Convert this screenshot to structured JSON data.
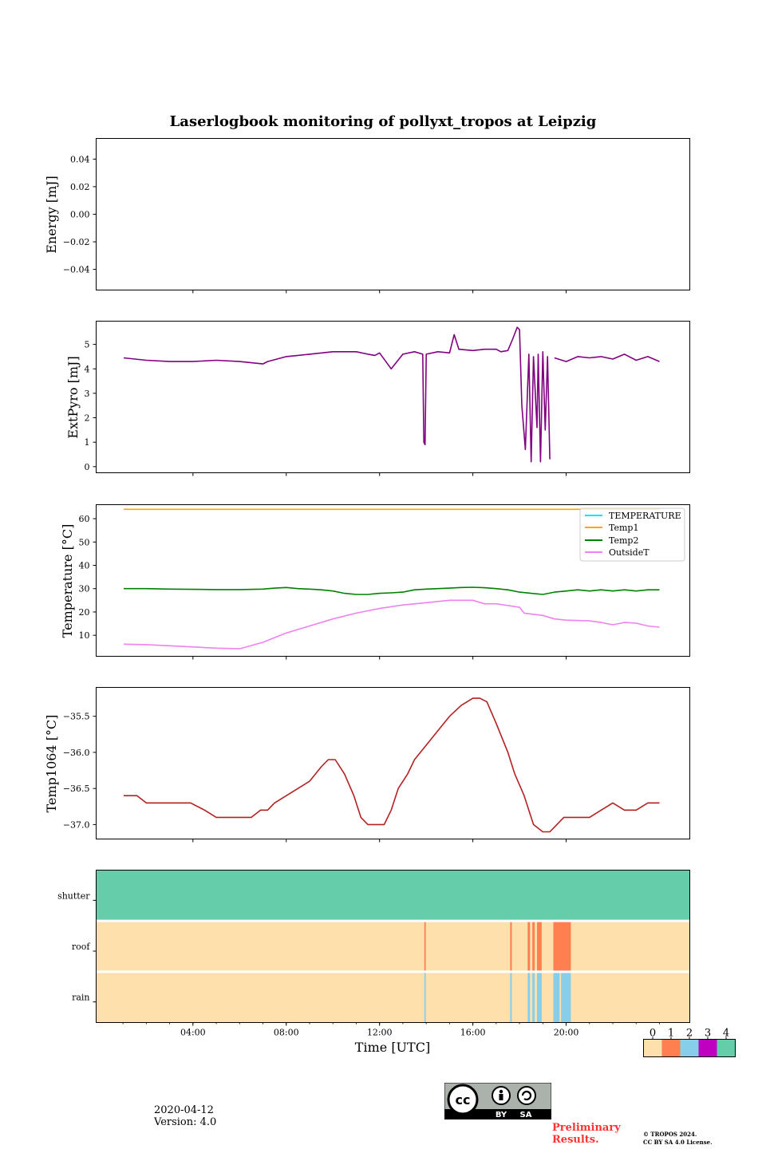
{
  "title": "Laserlogbook monitoring of pollyxt_tropos at Leipzig",
  "footer": {
    "date": "2020-04-12",
    "version": "Version: 4.0",
    "preliminary_line1": "Preliminary",
    "preliminary_line2": "Results.",
    "copyright_line1": "© TROPOS 2024.",
    "copyright_line2": "CC BY SA 4.0 License.",
    "license_badge_text_by": "BY",
    "license_badge_text_sa": "SA"
  },
  "colors": {
    "extpyro": "#800080",
    "temperature": "#00e5ee",
    "temp1": "#ffa500",
    "temp2": "#008000",
    "outsideT": "#ee82ee",
    "temp1064": "#b22222",
    "status_0": "#fde0ac",
    "status_1": "#ff7f50",
    "status_2": "#87ceeb",
    "status_3": "#c000c0",
    "status_4": "#66cdaa"
  },
  "chart_data": [
    {
      "type": "line",
      "name": "energy",
      "ylabel": "Energy [mJ]",
      "ylim": [
        -0.055,
        0.055
      ],
      "yticks": [
        0.04,
        0.02,
        0.0,
        -0.02,
        -0.04
      ],
      "ytick_labels": [
        "0.04",
        "0.02",
        "0.00",
        "−0.02",
        "−0.04"
      ],
      "series": []
    },
    {
      "type": "line",
      "name": "extpyro",
      "ylabel": "ExtPyro [mJ]",
      "ylim": [
        -0.25,
        5.95
      ],
      "yticks": [
        0,
        1,
        2,
        3,
        4,
        5
      ],
      "ytick_labels": [
        "0",
        "1",
        "2",
        "3",
        "4",
        "5"
      ],
      "series": [
        {
          "name": "ExtPyro",
          "color_key": "extpyro",
          "x": [
            0.03,
            1.0,
            2.0,
            3.0,
            4.0,
            5.0,
            5.5,
            6.0,
            6.2,
            7.0,
            8.0,
            9.0,
            10.0,
            10.5,
            10.8,
            11.0,
            11.5,
            12.0,
            12.5,
            12.85,
            12.9,
            12.95,
            13.0,
            13.5,
            14.0,
            14.2,
            14.4,
            15.0,
            15.5,
            16.0,
            16.2,
            16.5,
            16.7,
            16.9,
            17.0,
            17.1,
            17.25,
            17.4,
            17.5,
            17.6,
            17.75,
            17.8,
            17.9,
            18.0,
            18.1,
            18.2,
            18.3
          ],
          "y": [
            4.45,
            4.35,
            4.3,
            4.3,
            4.35,
            4.3,
            4.25,
            4.2,
            4.3,
            4.5,
            4.6,
            4.7,
            4.7,
            4.6,
            4.55,
            4.65,
            4.0,
            4.6,
            4.7,
            4.6,
            1.0,
            0.9,
            4.6,
            4.7,
            4.65,
            5.4,
            4.8,
            4.75,
            4.8,
            4.8,
            4.7,
            4.75,
            5.2,
            5.7,
            5.6,
            2.5,
            0.7,
            4.6,
            0.2,
            4.5,
            1.6,
            4.6,
            0.2,
            4.7,
            1.5,
            4.5,
            0.3
          ]
        },
        {
          "name": "ExtPyro-b",
          "color_key": "extpyro",
          "x": [
            18.5,
            19.0,
            19.5,
            20.0,
            20.5,
            21.0,
            21.5,
            22.0,
            22.5,
            23.0
          ],
          "y": [
            4.45,
            4.3,
            4.5,
            4.45,
            4.5,
            4.4,
            4.6,
            4.35,
            4.5,
            4.3
          ]
        }
      ]
    },
    {
      "type": "line",
      "name": "temperature",
      "ylabel": "Temperature [°C]",
      "ylim": [
        1,
        66
      ],
      "yticks": [
        10,
        20,
        30,
        40,
        50,
        60
      ],
      "ytick_labels": [
        "10",
        "20",
        "30",
        "40",
        "50",
        "60"
      ],
      "legend": [
        "TEMPERATURE",
        "Temp1",
        "Temp2",
        "OutsideT"
      ],
      "legend_location": "top-right",
      "series": [
        {
          "name": "TEMPERATURE",
          "color_key": "temperature",
          "x": [],
          "y": []
        },
        {
          "name": "Temp1",
          "color_key": "temp1",
          "x": [
            0.03,
            23.0
          ],
          "y": [
            64,
            64
          ]
        },
        {
          "name": "Temp2",
          "color_key": "temp2",
          "x": [
            0.03,
            1.0,
            2.0,
            3.0,
            4.0,
            5.0,
            6.0,
            6.5,
            7.0,
            7.5,
            8.0,
            8.5,
            9.0,
            9.5,
            10.0,
            10.5,
            11.0,
            11.5,
            12.0,
            12.5,
            13.0,
            14.0,
            14.5,
            15.0,
            15.5,
            16.0,
            16.5,
            17.0,
            17.5,
            18.0,
            18.5,
            19.0,
            19.5,
            20.0,
            20.5,
            21.0,
            21.5,
            22.0,
            22.5,
            23.0
          ],
          "y": [
            30,
            30,
            29.8,
            29.7,
            29.6,
            29.6,
            29.8,
            30.2,
            30.5,
            30.0,
            29.8,
            29.5,
            29.0,
            28.0,
            27.5,
            27.5,
            28.0,
            28.2,
            28.5,
            29.5,
            29.8,
            30.2,
            30.5,
            30.6,
            30.4,
            30.0,
            29.5,
            28.5,
            28.0,
            27.5,
            28.5,
            29.0,
            29.5,
            29.0,
            29.5,
            29.0,
            29.5,
            29.0,
            29.5,
            29.5
          ]
        },
        {
          "name": "OutsideT",
          "color_key": "outsideT",
          "x": [
            0.03,
            1.0,
            2.0,
            3.0,
            4.0,
            5.0,
            6.0,
            7.0,
            8.0,
            9.0,
            10.0,
            11.0,
            12.0,
            13.0,
            14.0,
            15.0,
            15.5,
            16.0,
            17.0,
            17.2,
            18.0,
            18.5,
            19.0,
            20.0,
            20.5,
            21.0,
            21.5,
            22.0,
            22.5,
            23.0
          ],
          "y": [
            6.2,
            6.0,
            5.5,
            5.0,
            4.5,
            4.2,
            7.0,
            11.0,
            14.0,
            17.0,
            19.5,
            21.5,
            23.0,
            24.0,
            25.0,
            25.0,
            23.5,
            23.5,
            22.0,
            19.5,
            18.5,
            17.0,
            16.5,
            16.2,
            15.5,
            14.5,
            15.5,
            15.2,
            14.0,
            13.5
          ]
        }
      ]
    },
    {
      "type": "line",
      "name": "temp1064",
      "ylabel": "Temp1064 [°C]",
      "ylim": [
        -37.2,
        -35.1
      ],
      "yticks": [
        -35.5,
        -36.0,
        -36.5,
        -37.0
      ],
      "ytick_labels": [
        "−35.5",
        "−36.0",
        "−36.5",
        "−37.0"
      ],
      "series": [
        {
          "name": "Temp1064",
          "color_key": "temp1064",
          "x": [
            0.03,
            0.6,
            1.0,
            2.0,
            2.9,
            3.5,
            4.0,
            4.5,
            5.0,
            5.5,
            5.9,
            6.2,
            6.5,
            7.0,
            7.5,
            8.0,
            8.5,
            8.8,
            9.1,
            9.5,
            9.9,
            10.2,
            10.5,
            10.8,
            11.2,
            11.5,
            11.8,
            12.2,
            12.5,
            13.0,
            13.5,
            14.0,
            14.5,
            15.0,
            15.3,
            15.6,
            16.0,
            16.5,
            16.8,
            17.2,
            17.6,
            18.0,
            18.3,
            18.6,
            18.9,
            19.2,
            19.5,
            20.0,
            20.5,
            21.0,
            21.5,
            22.0,
            22.5,
            23.0
          ],
          "y": [
            -36.6,
            -36.6,
            -36.7,
            -36.7,
            -36.7,
            -36.8,
            -36.9,
            -36.9,
            -36.9,
            -36.9,
            -36.8,
            -36.8,
            -36.7,
            -36.6,
            -36.5,
            -36.4,
            -36.2,
            -36.1,
            -36.1,
            -36.3,
            -36.6,
            -36.9,
            -37.0,
            -37.0,
            -37.0,
            -36.8,
            -36.5,
            -36.3,
            -36.1,
            -35.9,
            -35.7,
            -35.5,
            -35.35,
            -35.25,
            -35.25,
            -35.3,
            -35.6,
            -36.0,
            -36.3,
            -36.6,
            -37.0,
            -37.1,
            -37.1,
            -37.0,
            -36.9,
            -36.9,
            -36.9,
            -36.9,
            -36.8,
            -36.7,
            -36.8,
            -36.8,
            -36.7,
            -36.7
          ]
        }
      ]
    },
    {
      "type": "heatmap",
      "name": "status",
      "rows": [
        "shutter",
        "roof",
        "rain"
      ],
      "xlabel": "Time [UTC]",
      "xlim": [
        -1.15,
        24.3
      ],
      "xticks": [
        3,
        7,
        11,
        15,
        19
      ],
      "xtick_labels": [
        "04:00",
        "08:00",
        "12:00",
        "16:00",
        "20:00"
      ],
      "row_default": [
        4,
        0,
        0
      ],
      "segments": [
        {
          "row": 1,
          "from": 12.92,
          "to": 12.98,
          "value": 1
        },
        {
          "row": 1,
          "from": 16.6,
          "to": 16.67,
          "value": 1
        },
        {
          "row": 1,
          "from": 17.35,
          "to": 17.45,
          "value": 1
        },
        {
          "row": 1,
          "from": 17.55,
          "to": 17.65,
          "value": 1
        },
        {
          "row": 1,
          "from": 17.75,
          "to": 17.95,
          "value": 1
        },
        {
          "row": 1,
          "from": 18.45,
          "to": 19.2,
          "value": 1
        },
        {
          "row": 2,
          "from": 12.92,
          "to": 12.98,
          "value": 2
        },
        {
          "row": 2,
          "from": 16.6,
          "to": 16.67,
          "value": 2
        },
        {
          "row": 2,
          "from": 17.35,
          "to": 17.45,
          "value": 2
        },
        {
          "row": 2,
          "from": 17.55,
          "to": 17.65,
          "value": 2
        },
        {
          "row": 2,
          "from": 17.75,
          "to": 17.95,
          "value": 2
        },
        {
          "row": 2,
          "from": 18.45,
          "to": 18.72,
          "value": 2
        },
        {
          "row": 2,
          "from": 18.78,
          "to": 19.2,
          "value": 2
        }
      ],
      "colorbar_ticks": [
        "0",
        "1",
        "2",
        "3",
        "4"
      ]
    }
  ]
}
